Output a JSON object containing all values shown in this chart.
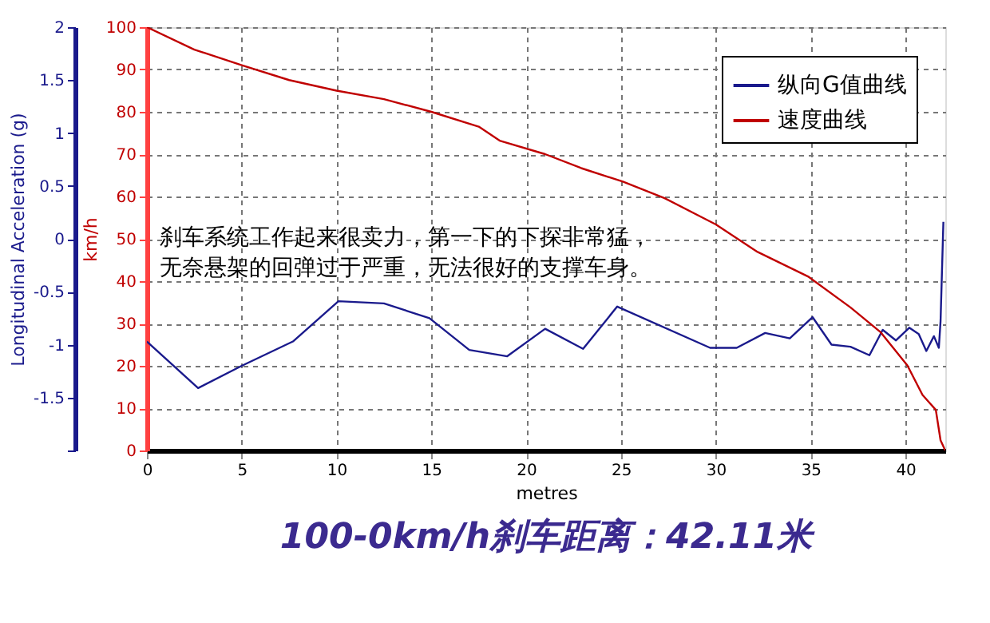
{
  "chart_data": {
    "type": "line",
    "title": "100-0km/h刹车距离：42.11米",
    "xlabel": "metres",
    "ylabel": "km/h",
    "y2label": "Longitudinal Acceleration (g)",
    "annotations": [
      "刹车系统工作起来很卖力，第一下的下探非常猛，无奈悬架的回弹过于严重，无法很好的支撑车身。"
    ],
    "xlim": [
      0,
      42.1
    ],
    "xticks": [
      0,
      5,
      10,
      15,
      20,
      25,
      30,
      35,
      40
    ],
    "ylim": [
      0,
      100
    ],
    "yticks": [
      0,
      10,
      20,
      30,
      40,
      50,
      60,
      70,
      80,
      90,
      100
    ],
    "y2lim": [
      -2,
      2
    ],
    "y2ticks": [
      {
        "value": -2,
        "label": null
      },
      -1.5,
      -1,
      -0.5,
      0,
      0.5,
      1,
      1.5,
      2
    ],
    "grid": true,
    "legend": "top right",
    "line_style": "solid",
    "marker": "none",
    "series": [
      {
        "name": "纵向G值曲线",
        "color": "#1a1a8c",
        "axis": "y2",
        "x": [
          0,
          2.7,
          5.0,
          7.7,
          10.1,
          12.5,
          14.9,
          17.0,
          19.0,
          21.0,
          23.0,
          24.8,
          29.7,
          31.1,
          32.6,
          33.9,
          35.1,
          36.1,
          37.1,
          38.1,
          38.8,
          39.5,
          40.2,
          40.7,
          41.1,
          41.5,
          41.76,
          41.85,
          42.0
        ],
        "values": [
          -0.97,
          -1.41,
          -1.2,
          -0.97,
          -0.59,
          -0.61,
          -0.75,
          -1.05,
          -1.11,
          -0.85,
          -1.04,
          -0.64,
          -1.03,
          -1.03,
          -0.89,
          -0.94,
          -0.74,
          -1.0,
          -1.02,
          -1.1,
          -0.86,
          -0.96,
          -0.84,
          -0.9,
          -1.06,
          -0.92,
          -1.03,
          -0.78,
          0.16
        ]
      },
      {
        "name": "速度曲线",
        "color": "#c00000",
        "x": [
          0,
          2.5,
          5,
          7.5,
          10,
          12.5,
          15,
          17.5,
          18.6,
          21.0,
          22.9,
          25.1,
          27.3,
          30.0,
          32.2,
          34.9,
          37.1,
          38.7,
          40.1,
          40.9,
          41.6,
          41.85,
          42.1
        ],
        "values": [
          100,
          94.7,
          91,
          87.5,
          85,
          83,
          80,
          76.5,
          73.2,
          70.0,
          66.7,
          63.5,
          59.6,
          53.4,
          46.9,
          41.0,
          33.8,
          27.9,
          20.1,
          13.1,
          9.6,
          2.4,
          0
        ]
      }
    ]
  }
}
